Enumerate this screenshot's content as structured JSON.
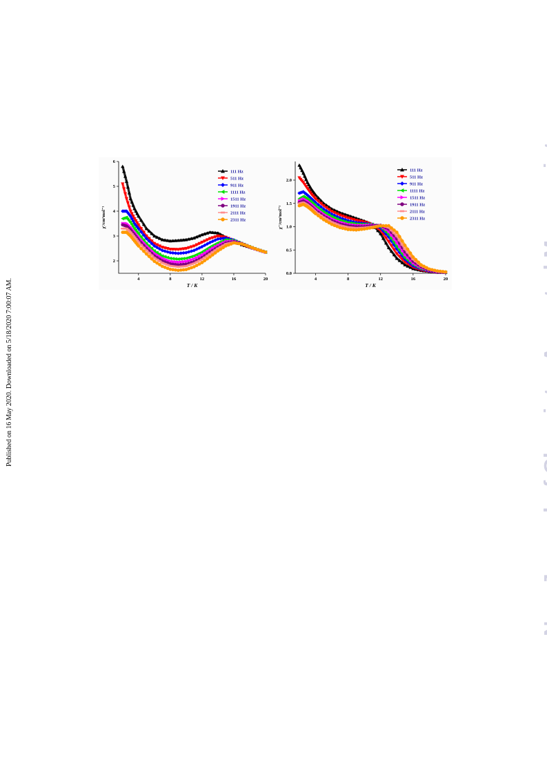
{
  "margin_note": "Published on 16 May 2020. Downloaded on 5/18/2020 7:00:07 AM.",
  "watermark": "New Journal of Chemistry Accepted Manuscript",
  "chart_data": [
    {
      "type": "scatter",
      "xlabel": "T / K",
      "ylabel": "χ'/cm³mol⁻¹",
      "xlim": [
        1.5,
        20
      ],
      "ylim": [
        1.5,
        6
      ],
      "xticks": [
        4,
        8,
        12,
        16,
        20
      ],
      "yticks": [
        2,
        3,
        4,
        5,
        6
      ],
      "legend_position": "top-right",
      "series": [
        {
          "name": "111 Hz",
          "color": "#000000",
          "marker": "triangle-up",
          "x": [
            2,
            2.5,
            3,
            3.5,
            4,
            5,
            6,
            7,
            8,
            9,
            10,
            11,
            12,
            13,
            14,
            15,
            16,
            17,
            18,
            19,
            20
          ],
          "y": [
            5.8,
            5.2,
            4.5,
            4.1,
            3.8,
            3.3,
            3.0,
            2.85,
            2.8,
            2.82,
            2.85,
            2.92,
            3.05,
            3.15,
            3.12,
            2.95,
            2.8,
            2.65,
            2.55,
            2.45,
            2.35
          ]
        },
        {
          "name": "511 Hz",
          "color": "#ff0000",
          "marker": "triangle-down",
          "x": [
            2,
            2.5,
            3,
            3.5,
            4,
            5,
            6,
            7,
            8,
            9,
            10,
            11,
            12,
            13,
            14,
            15,
            16,
            17,
            18,
            19,
            20
          ],
          "y": [
            5.1,
            4.5,
            4.0,
            3.7,
            3.45,
            3.0,
            2.7,
            2.55,
            2.47,
            2.46,
            2.5,
            2.6,
            2.75,
            2.9,
            3.0,
            2.95,
            2.82,
            2.67,
            2.55,
            2.45,
            2.35
          ]
        },
        {
          "name": "911 Hz",
          "color": "#0000ff",
          "marker": "diamond",
          "x": [
            2,
            2.5,
            3,
            3.5,
            4,
            5,
            6,
            7,
            8,
            9,
            10,
            11,
            12,
            13,
            14,
            15,
            16,
            17,
            18,
            19,
            20
          ],
          "y": [
            4.0,
            4.0,
            3.8,
            3.5,
            3.3,
            2.9,
            2.6,
            2.42,
            2.33,
            2.3,
            2.33,
            2.42,
            2.57,
            2.74,
            2.88,
            2.92,
            2.84,
            2.7,
            2.57,
            2.45,
            2.35
          ]
        },
        {
          "name": "1111 Hz",
          "color": "#00e000",
          "marker": "triangle-left",
          "x": [
            2,
            2.5,
            3,
            3.5,
            4,
            5,
            6,
            7,
            8,
            9,
            10,
            11,
            12,
            13,
            14,
            15,
            16,
            17,
            18,
            19,
            20
          ],
          "y": [
            3.7,
            3.75,
            3.55,
            3.3,
            3.1,
            2.7,
            2.4,
            2.2,
            2.1,
            2.07,
            2.1,
            2.2,
            2.35,
            2.55,
            2.72,
            2.85,
            2.82,
            2.7,
            2.57,
            2.45,
            2.35
          ]
        },
        {
          "name": "1511 Hz",
          "color": "#ff00ff",
          "marker": "triangle-right",
          "x": [
            2,
            2.5,
            3,
            3.5,
            4,
            5,
            6,
            7,
            8,
            9,
            10,
            11,
            12,
            13,
            14,
            15,
            16,
            17,
            18,
            19,
            20
          ],
          "y": [
            3.5,
            3.5,
            3.35,
            3.15,
            2.95,
            2.6,
            2.3,
            2.1,
            1.98,
            1.95,
            1.98,
            2.08,
            2.24,
            2.45,
            2.63,
            2.78,
            2.8,
            2.7,
            2.57,
            2.45,
            2.35
          ]
        },
        {
          "name": "1911 Hz",
          "color": "#800080",
          "marker": "circle",
          "x": [
            2,
            2.5,
            3,
            3.5,
            4,
            5,
            6,
            7,
            8,
            9,
            10,
            11,
            12,
            13,
            14,
            15,
            16,
            17,
            18,
            19,
            20
          ],
          "y": [
            3.45,
            3.4,
            3.25,
            3.05,
            2.85,
            2.5,
            2.2,
            2.0,
            1.88,
            1.84,
            1.87,
            1.97,
            2.13,
            2.35,
            2.55,
            2.72,
            2.77,
            2.7,
            2.57,
            2.45,
            2.35
          ]
        },
        {
          "name": "2111 Hz",
          "color": "#ff8c8c",
          "marker": "dash",
          "x": [
            2,
            2.5,
            3,
            3.5,
            4,
            5,
            6,
            7,
            8,
            9,
            10,
            11,
            12,
            13,
            14,
            15,
            16,
            17,
            18,
            19,
            20
          ],
          "y": [
            3.3,
            3.3,
            3.15,
            2.95,
            2.75,
            2.42,
            2.12,
            1.92,
            1.8,
            1.76,
            1.79,
            1.9,
            2.06,
            2.28,
            2.5,
            2.68,
            2.75,
            2.69,
            2.57,
            2.45,
            2.35
          ]
        },
        {
          "name": "2311 Hz",
          "color": "#ff9900",
          "marker": "circle",
          "x": [
            2,
            2.5,
            3,
            3.5,
            4,
            5,
            6,
            7,
            8,
            9,
            10,
            11,
            12,
            13,
            14,
            15,
            16,
            17,
            18,
            19,
            20
          ],
          "y": [
            3.15,
            3.15,
            3.0,
            2.8,
            2.6,
            2.28,
            1.98,
            1.78,
            1.66,
            1.62,
            1.65,
            1.76,
            1.93,
            2.16,
            2.4,
            2.6,
            2.72,
            2.68,
            2.57,
            2.45,
            2.35
          ]
        }
      ]
    },
    {
      "type": "scatter",
      "xlabel": "T / K",
      "ylabel": "χ''/cm³mol⁻¹",
      "xlim": [
        1.5,
        20
      ],
      "ylim": [
        0,
        2.4
      ],
      "xticks": [
        4,
        8,
        12,
        16,
        20
      ],
      "yticks": [
        0.0,
        0.5,
        1.0,
        1.5,
        2.0
      ],
      "legend_position": "top-right",
      "series": [
        {
          "name": "111 Hz",
          "color": "#000000",
          "marker": "triangle-up",
          "x": [
            2,
            2.5,
            3,
            3.5,
            4,
            5,
            6,
            7,
            8,
            9,
            10,
            11,
            12,
            13,
            14,
            15,
            16,
            17,
            18,
            19,
            20
          ],
          "y": [
            2.32,
            2.15,
            1.95,
            1.8,
            1.68,
            1.5,
            1.38,
            1.3,
            1.24,
            1.18,
            1.12,
            1.05,
            0.85,
            0.55,
            0.32,
            0.18,
            0.1,
            0.06,
            0.04,
            0.02,
            0.02
          ]
        },
        {
          "name": "511 Hz",
          "color": "#ff0000",
          "marker": "triangle-down",
          "x": [
            2,
            2.5,
            3,
            3.5,
            4,
            5,
            6,
            7,
            8,
            9,
            10,
            11,
            12,
            13,
            14,
            15,
            16,
            17,
            18,
            19,
            20
          ],
          "y": [
            2.05,
            1.95,
            1.82,
            1.7,
            1.6,
            1.45,
            1.33,
            1.25,
            1.19,
            1.14,
            1.1,
            1.05,
            0.92,
            0.68,
            0.42,
            0.24,
            0.13,
            0.07,
            0.04,
            0.02,
            0.02
          ]
        },
        {
          "name": "911 Hz",
          "color": "#0000ff",
          "marker": "diamond",
          "x": [
            2,
            2.5,
            3,
            3.5,
            4,
            5,
            6,
            7,
            8,
            9,
            10,
            11,
            12,
            13,
            14,
            15,
            16,
            17,
            18,
            19,
            20
          ],
          "y": [
            1.72,
            1.75,
            1.68,
            1.6,
            1.52,
            1.38,
            1.27,
            1.19,
            1.13,
            1.09,
            1.07,
            1.05,
            0.97,
            0.78,
            0.52,
            0.3,
            0.16,
            0.09,
            0.05,
            0.03,
            0.02
          ]
        },
        {
          "name": "1111 Hz",
          "color": "#00e000",
          "marker": "triangle-left",
          "x": [
            2,
            2.5,
            3,
            3.5,
            4,
            5,
            6,
            7,
            8,
            9,
            10,
            11,
            12,
            13,
            14,
            15,
            16,
            17,
            18,
            19,
            20
          ],
          "y": [
            1.6,
            1.65,
            1.6,
            1.53,
            1.45,
            1.32,
            1.22,
            1.14,
            1.09,
            1.06,
            1.05,
            1.05,
            1.0,
            0.84,
            0.58,
            0.34,
            0.19,
            0.1,
            0.06,
            0.03,
            0.02
          ]
        },
        {
          "name": "1511 Hz",
          "color": "#ff00ff",
          "marker": "triangle-right",
          "x": [
            2,
            2.5,
            3,
            3.5,
            4,
            5,
            6,
            7,
            8,
            9,
            10,
            11,
            12,
            13,
            14,
            15,
            16,
            17,
            18,
            19,
            20
          ],
          "y": [
            1.55,
            1.6,
            1.55,
            1.48,
            1.4,
            1.27,
            1.17,
            1.1,
            1.05,
            1.03,
            1.03,
            1.04,
            1.02,
            0.9,
            0.66,
            0.4,
            0.22,
            0.12,
            0.06,
            0.03,
            0.02
          ]
        },
        {
          "name": "1911 Hz",
          "color": "#800080",
          "marker": "circle",
          "x": [
            2,
            2.5,
            3,
            3.5,
            4,
            5,
            6,
            7,
            8,
            9,
            10,
            11,
            12,
            13,
            14,
            15,
            16,
            17,
            18,
            19,
            20
          ],
          "y": [
            1.52,
            1.55,
            1.5,
            1.43,
            1.35,
            1.23,
            1.13,
            1.06,
            1.02,
            1.0,
            1.0,
            1.02,
            1.03,
            0.95,
            0.74,
            0.46,
            0.26,
            0.14,
            0.07,
            0.04,
            0.02
          ]
        },
        {
          "name": "2111 Hz",
          "color": "#ff8c8c",
          "marker": "dash",
          "x": [
            2,
            2.5,
            3,
            3.5,
            4,
            5,
            6,
            7,
            8,
            9,
            10,
            11,
            12,
            13,
            14,
            15,
            16,
            17,
            18,
            19,
            20
          ],
          "y": [
            1.5,
            1.52,
            1.47,
            1.4,
            1.32,
            1.2,
            1.1,
            1.03,
            0.99,
            0.97,
            0.98,
            1.0,
            1.03,
            0.98,
            0.8,
            0.52,
            0.3,
            0.16,
            0.08,
            0.04,
            0.02
          ]
        },
        {
          "name": "2311 Hz",
          "color": "#ff9900",
          "marker": "circle",
          "x": [
            2,
            2.5,
            3,
            3.5,
            4,
            5,
            6,
            7,
            8,
            9,
            10,
            11,
            12,
            13,
            14,
            15,
            16,
            17,
            18,
            19,
            20
          ],
          "y": [
            1.45,
            1.48,
            1.43,
            1.36,
            1.28,
            1.15,
            1.05,
            0.98,
            0.94,
            0.93,
            0.95,
            0.98,
            1.02,
            1.02,
            0.88,
            0.6,
            0.35,
            0.18,
            0.09,
            0.05,
            0.03
          ]
        }
      ]
    }
  ]
}
